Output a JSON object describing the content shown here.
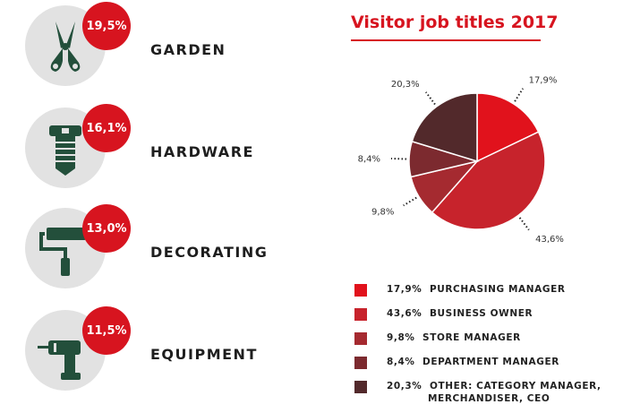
{
  "categories": [
    {
      "label": "GARDEN",
      "value": "19,5%",
      "icon": "pruning-shears-icon"
    },
    {
      "label": "HARDWARE",
      "value": "16,1%",
      "icon": "bolt-screw-icon"
    },
    {
      "label": "DECORATING",
      "value": "13,0%",
      "icon": "paint-roller-icon"
    },
    {
      "label": "EQUIPMENT",
      "value": "11,5%",
      "icon": "power-drill-icon"
    }
  ],
  "colors": {
    "accent": "#d7141f",
    "icon": "#234f3b",
    "circle_bg": "#e2e2e2"
  },
  "chart_data": {
    "type": "pie",
    "title": "Visitor job titles 2017",
    "slices": [
      {
        "name": "PURCHASING MANAGER",
        "value": 17.9,
        "label": "17,9%",
        "color": "#e1121c"
      },
      {
        "name": "BUSINESS OWNER",
        "value": 43.6,
        "label": "43,6%",
        "color": "#c7232c"
      },
      {
        "name": "STORE MANAGER",
        "value": 9.8,
        "label": "9,8%",
        "color": "#a52a30"
      },
      {
        "name": "DEPARTMENT MANAGER",
        "value": 8.4,
        "label": "8,4%",
        "color": "#7c2a2f"
      },
      {
        "name": "OTHER: CATEGORY MANAGER, MERCHANDISER, CEO",
        "value": 20.3,
        "label": "20,3%",
        "color": "#52292b"
      }
    ],
    "legend": [
      {
        "pct": "17,9%",
        "text": "PURCHASING MANAGER"
      },
      {
        "pct": "43,6%",
        "text": "BUSINESS OWNER"
      },
      {
        "pct": "9,8%",
        "text": "STORE MANAGER"
      },
      {
        "pct": "8,4%",
        "text": "DEPARTMENT MANAGER"
      },
      {
        "pct": "20,3%",
        "text": "OTHER: CATEGORY MANAGER,",
        "text2": "MERCHANDISER, CEO"
      }
    ],
    "legend_placement": "bottom"
  }
}
